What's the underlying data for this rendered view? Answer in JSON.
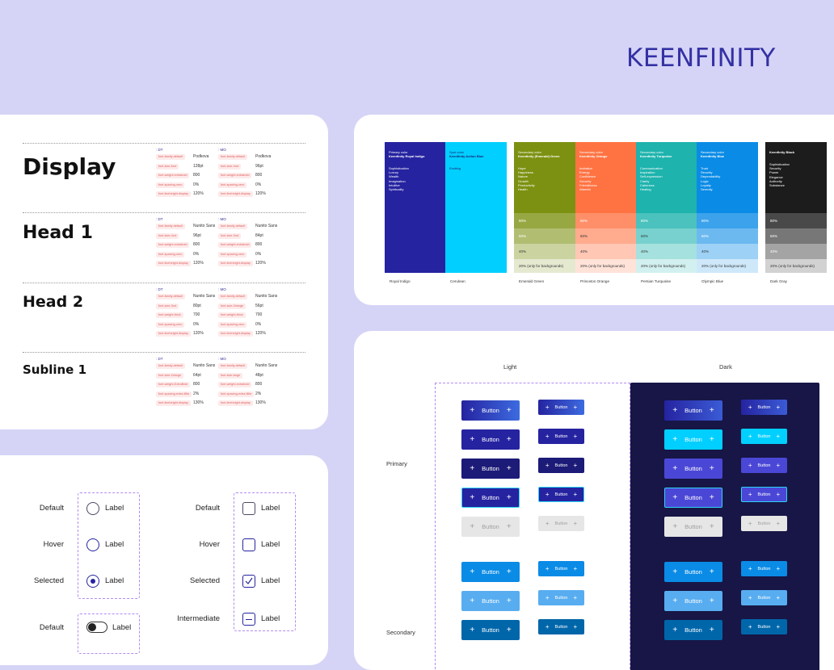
{
  "brand": {
    "logo": "KEENFINITY"
  },
  "typography": {
    "col_dt": ": DT",
    "col_mo": ": MO",
    "styles": [
      {
        "name": "Display",
        "dt": [
          [
            "font-family-default",
            "Podkova"
          ],
          [
            "font-size-6xxl",
            "128pt"
          ],
          [
            "font-weight-extrabold",
            "800"
          ],
          [
            "font-spacing-zero",
            "0%"
          ],
          [
            "font-lineheight-display",
            "120%"
          ]
        ],
        "mo": [
          [
            "font-family-default",
            "Podkova"
          ],
          [
            "font-size-4xxl",
            "96pt"
          ],
          [
            "font-weight-extrabold",
            "800"
          ],
          [
            "font-spacing-zero",
            "0%"
          ],
          [
            "font-lineheight-display",
            "120%"
          ]
        ]
      },
      {
        "name": "Head 1",
        "dt": [
          [
            "font-family-default",
            "Nunito Sans"
          ],
          [
            "font-size-4xxl",
            "96pt"
          ],
          [
            "font-weight-extrabold",
            "800"
          ],
          [
            "font-spacing-zero",
            "0%"
          ],
          [
            "font-lineheight-display",
            "120%"
          ]
        ],
        "mo": [
          [
            "font-family-default",
            "Nunito Sans"
          ],
          [
            "font-size-3xxl",
            "84pt"
          ],
          [
            "font-weight-extrabold",
            "800"
          ],
          [
            "font-spacing-zero",
            "0%"
          ],
          [
            "font-lineheight-display",
            "120%"
          ]
        ]
      },
      {
        "name": "Head 2",
        "dt": [
          [
            "font-family-default",
            "Nunito Sans"
          ],
          [
            "font-size-3xxl",
            "80pt"
          ],
          [
            "font-weight-thick",
            "700"
          ],
          [
            "font-spacing-zero",
            "0%"
          ],
          [
            "font-lineheight-display",
            "120%"
          ]
        ],
        "mo": [
          [
            "font-family-default",
            "Nunito Sans"
          ],
          [
            "font-size-2xlarge",
            "56pt"
          ],
          [
            "font-weight-thick",
            "700"
          ],
          [
            "font-spacing-zero",
            "0%"
          ],
          [
            "font-lineheight-display",
            "120%"
          ]
        ]
      },
      {
        "name": "Subline 1",
        "dt": [
          [
            "font-family-default",
            "Nunito Sans"
          ],
          [
            "font-size-2xlarge",
            "64pt"
          ],
          [
            "font-weight-ExtraBold",
            "800"
          ],
          [
            "font-spacing-extra-little",
            "2%"
          ],
          [
            "font-lineheight-display",
            "130%"
          ]
        ],
        "mo": [
          [
            "font-family-default",
            "Nunito Sans"
          ],
          [
            "font-size-large",
            "48pt"
          ],
          [
            "font-weight-extrabold",
            "800"
          ],
          [
            "font-spacing-extra-little",
            "2%"
          ],
          [
            "font-lineheight-display",
            "130%"
          ]
        ]
      }
    ]
  },
  "palette": {
    "colors": [
      {
        "role": "Primary color",
        "title": "Keenfinity Royal Indigo",
        "desc": "Sophistication\nLuxury\nWealth\nImagination\nIntuitive\nSpirituality",
        "label": "Royal Indigo",
        "base": "#2523a0",
        "text": "#ffffff",
        "shades": []
      },
      {
        "role": "Spot color",
        "title": "Keenfinity Action Blue",
        "desc": "Exciting",
        "label": "Cerulean",
        "base": "#01cfff",
        "text": "#1d1d6e",
        "shades": []
      },
      {
        "role": "Secondary color",
        "title": "Keenfinity (Emerald) Green",
        "desc": "Hope\nHappiness\nNature\nGrowth\nProductivity\nHealth",
        "label": "Emerald Green",
        "base": "#7c9111",
        "text": "#ffffff",
        "shades": [
          [
            "80%",
            "#97a843",
            "#ffffff"
          ],
          [
            "60%",
            "#b1be72",
            "#ffffff"
          ],
          [
            "40%",
            "#cbd3a0",
            "#333333"
          ],
          [
            "20% (only for backgrounds)",
            "#e5e9d0",
            "#333333"
          ]
        ]
      },
      {
        "role": "Secondary color",
        "title": "Keenfinity Orange",
        "desc": "Invitation\nEnergy\nConfidence\nSecurity\nFriendliness\nWarmth",
        "label": "Princeton Orange",
        "base": "#ff7343",
        "text": "#ffffff",
        "shades": [
          [
            "80%",
            "#ff8f69",
            "#ffffff"
          ],
          [
            "60%",
            "#ffab8e",
            "#333333"
          ],
          [
            "40%",
            "#ffc7b4",
            "#333333"
          ],
          [
            "20% (only for backgrounds)",
            "#ffe3d9",
            "#333333"
          ]
        ]
      },
      {
        "role": "Secondary color",
        "title": "Keenfinity Turquoise",
        "desc": "Communication\nInspiration\nSelf-expression\nClarity\nCalmness\nHealing",
        "label": "Persian Turquoise",
        "base": "#1eb3ad",
        "text": "#ffffff",
        "shades": [
          [
            "80%",
            "#4bc2bd",
            "#ffffff"
          ],
          [
            "60%",
            "#78d1ce",
            "#333333"
          ],
          [
            "40%",
            "#a5e1de",
            "#333333"
          ],
          [
            "20% (only for backgrounds)",
            "#d2f0ef",
            "#333333"
          ]
        ]
      },
      {
        "role": "Secondary color",
        "title": "Keenfinity Blue",
        "desc": "Trust\nSecurity\nDependability\nLogic\nLoyalty\nSerenity",
        "label": "Olympic Blue",
        "base": "#0a8be6",
        "text": "#ffffff",
        "shades": [
          [
            "80%",
            "#3ba2eb",
            "#ffffff"
          ],
          [
            "60%",
            "#6cb9f0",
            "#ffffff"
          ],
          [
            "40%",
            "#9dd1f5",
            "#333333"
          ],
          [
            "20% (only for backgrounds)",
            "#cee8fa",
            "#333333"
          ]
        ]
      },
      {
        "role": "",
        "title": "Keenfinity Black",
        "desc": "Sophistication\nSecurity\nPower\nElegance\nAuthority\nSubstance",
        "label": "Dark Gray",
        "base": "#1c1c1c",
        "text": "#ffffff",
        "shades": [
          [
            "80%",
            "#494949",
            "#ffffff"
          ],
          [
            "60%",
            "#777777",
            "#ffffff"
          ],
          [
            "40%",
            "#a4a4a4",
            "#ffffff"
          ],
          [
            "20% (only for backgrounds)",
            "#d2d2d2",
            "#333333"
          ]
        ]
      }
    ]
  },
  "buttons": {
    "light_title": "Light",
    "dark_title": "Dark",
    "row_labels": {
      "primary": "Primary",
      "secondary": "Secondary"
    },
    "button_label": "Button",
    "plus": "+",
    "rows": [
      {
        "light": [
          "linear-gradient(90deg,#2523a0,#3d6be0)",
          "#2523a0",
          "#1c1b78",
          "#2523a0",
          "#e6e6e6"
        ],
        "dark": [
          "linear-gradient(90deg,#2523a0,#3b5bd6)",
          "#01cfff",
          "#4b47d6",
          "#4b47d6",
          "#e6e6e6"
        ]
      },
      {
        "light": [
          "#0a8be6",
          "#58adf0",
          "#0066aa"
        ],
        "dark": [
          "#0a8be6",
          "#58adf0",
          "#0066aa"
        ]
      }
    ]
  },
  "controls": {
    "radio": {
      "states": [
        "Default",
        "Hover",
        "Selected",
        "Default"
      ],
      "label": "Label"
    },
    "checkbox": {
      "states": [
        "Default",
        "Hover",
        "Selected",
        "Intermediate"
      ],
      "label": "Label"
    }
  }
}
